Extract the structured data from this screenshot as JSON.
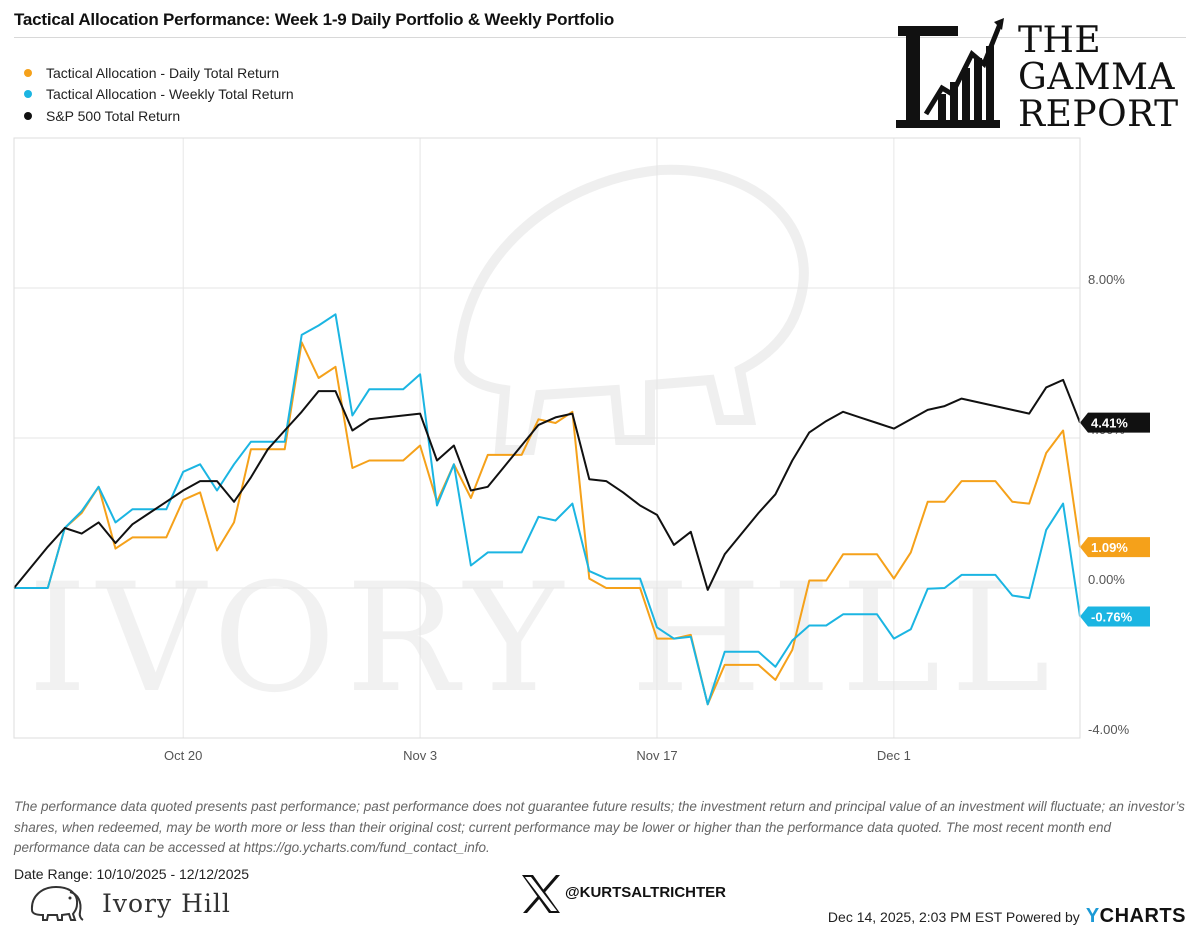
{
  "title": "Tactical Allocation Performance: Week 1-9 Daily Portfolio & Weekly Portfolio",
  "brand": {
    "line1": "THE",
    "line2": "GAMMA",
    "line3": "REPORT"
  },
  "watermark": "IVORY HILL",
  "disclaimer": "The performance data quoted presents past performance; past performance does not guarantee future results; the investment return and principal value of an investment will fluctuate; an investor’s shares, when redeemed, may be worth more or less than their original cost; current performance may be lower or higher than the performance data quoted. The most recent month end performance data can be accessed at https://go.ycharts.com/fund_contact_info.",
  "date_range": "Date Range: 10/10/2025 - 12/12/2025",
  "ivory_hill": "Ivory Hill",
  "handle": "@KURTSALTRICHTER",
  "footer": {
    "stamp": "Dec 14, 2025, 2:03 PM EST Powered by",
    "ycharts_y": "Y",
    "ycharts_rest": "CHARTS"
  },
  "colors": {
    "daily": "#f5a11a",
    "weekly": "#1bb5e2",
    "sp500": "#111111",
    "grid": "#e6e6e6"
  },
  "chart_data": {
    "type": "line",
    "title": "Tactical Allocation Performance: Week 1-9 Daily Portfolio & Weekly Portfolio",
    "x_ticks": [
      {
        "label": "Oct 20",
        "index": 10
      },
      {
        "label": "Nov 3",
        "index": 24
      },
      {
        "label": "Nov 17",
        "index": 38
      },
      {
        "label": "Dec 1",
        "index": 52
      }
    ],
    "y_ticks": [
      {
        "label": "8.00%",
        "value": 8
      },
      {
        "label": "4.00%",
        "value": 4
      },
      {
        "label": "0.00%",
        "value": 0
      },
      {
        "label": "-4.00%",
        "value": -4
      }
    ],
    "ylim": [
      -4,
      12
    ],
    "x_count": 64,
    "legend_position": "top-left",
    "series": [
      {
        "name": "Tactical Allocation - Daily Total Return",
        "color": "#f5a11a",
        "end_label": "1.09%",
        "values": [
          0,
          0,
          0,
          1.6,
          2.0,
          2.7,
          1.05,
          1.35,
          1.35,
          1.35,
          2.35,
          2.55,
          1.0,
          1.75,
          3.7,
          3.7,
          3.7,
          6.55,
          5.6,
          5.9,
          3.2,
          3.4,
          3.4,
          3.4,
          3.8,
          2.3,
          3.3,
          2.4,
          3.55,
          3.55,
          3.55,
          4.5,
          4.4,
          4.7,
          0.25,
          0.0,
          0.0,
          0.0,
          -1.35,
          -1.35,
          -1.25,
          -3.1,
          -2.05,
          -2.05,
          -2.05,
          -2.45,
          -1.65,
          0.2,
          0.2,
          0.9,
          0.9,
          0.9,
          0.25,
          0.95,
          2.3,
          2.3,
          2.85,
          2.85,
          2.85,
          2.3,
          2.25,
          3.6,
          4.2,
          1.09
        ]
      },
      {
        "name": "Tactical Allocation - Weekly Total Return",
        "color": "#1bb5e2",
        "end_label": "-0.76%",
        "values": [
          0,
          0,
          0,
          1.6,
          2.05,
          2.7,
          1.75,
          2.1,
          2.1,
          2.1,
          3.1,
          3.3,
          2.6,
          3.3,
          3.9,
          3.9,
          3.9,
          6.75,
          7.0,
          7.3,
          4.6,
          5.3,
          5.3,
          5.3,
          5.7,
          2.2,
          3.3,
          0.6,
          0.95,
          0.95,
          0.95,
          1.9,
          1.8,
          2.25,
          0.45,
          0.25,
          0.25,
          0.25,
          -1.05,
          -1.35,
          -1.3,
          -3.1,
          -1.7,
          -1.7,
          -1.7,
          -2.1,
          -1.4,
          -1.0,
          -1.0,
          -0.7,
          -0.7,
          -0.7,
          -1.35,
          -1.1,
          -0.02,
          0.0,
          0.35,
          0.35,
          0.35,
          -0.2,
          -0.27,
          1.55,
          2.25,
          -0.76
        ]
      },
      {
        "name": "S&P 500 Total Return",
        "color": "#111111",
        "end_label": "4.41%",
        "values": [
          0,
          0.55,
          1.1,
          1.6,
          1.45,
          1.75,
          1.2,
          1.7,
          2.0,
          2.3,
          2.6,
          2.85,
          2.85,
          2.3,
          2.95,
          3.7,
          4.2,
          4.7,
          5.25,
          5.25,
          4.2,
          4.5,
          4.55,
          4.6,
          4.65,
          3.4,
          3.8,
          2.6,
          2.7,
          3.25,
          3.8,
          4.35,
          4.55,
          4.65,
          2.9,
          2.85,
          2.55,
          2.2,
          1.95,
          1.15,
          1.5,
          -0.05,
          0.9,
          1.45,
          2.0,
          2.5,
          3.4,
          4.15,
          4.45,
          4.7,
          4.55,
          4.4,
          4.25,
          4.5,
          4.75,
          4.85,
          5.05,
          4.95,
          4.85,
          4.75,
          4.65,
          5.35,
          5.55,
          4.41
        ]
      }
    ]
  }
}
